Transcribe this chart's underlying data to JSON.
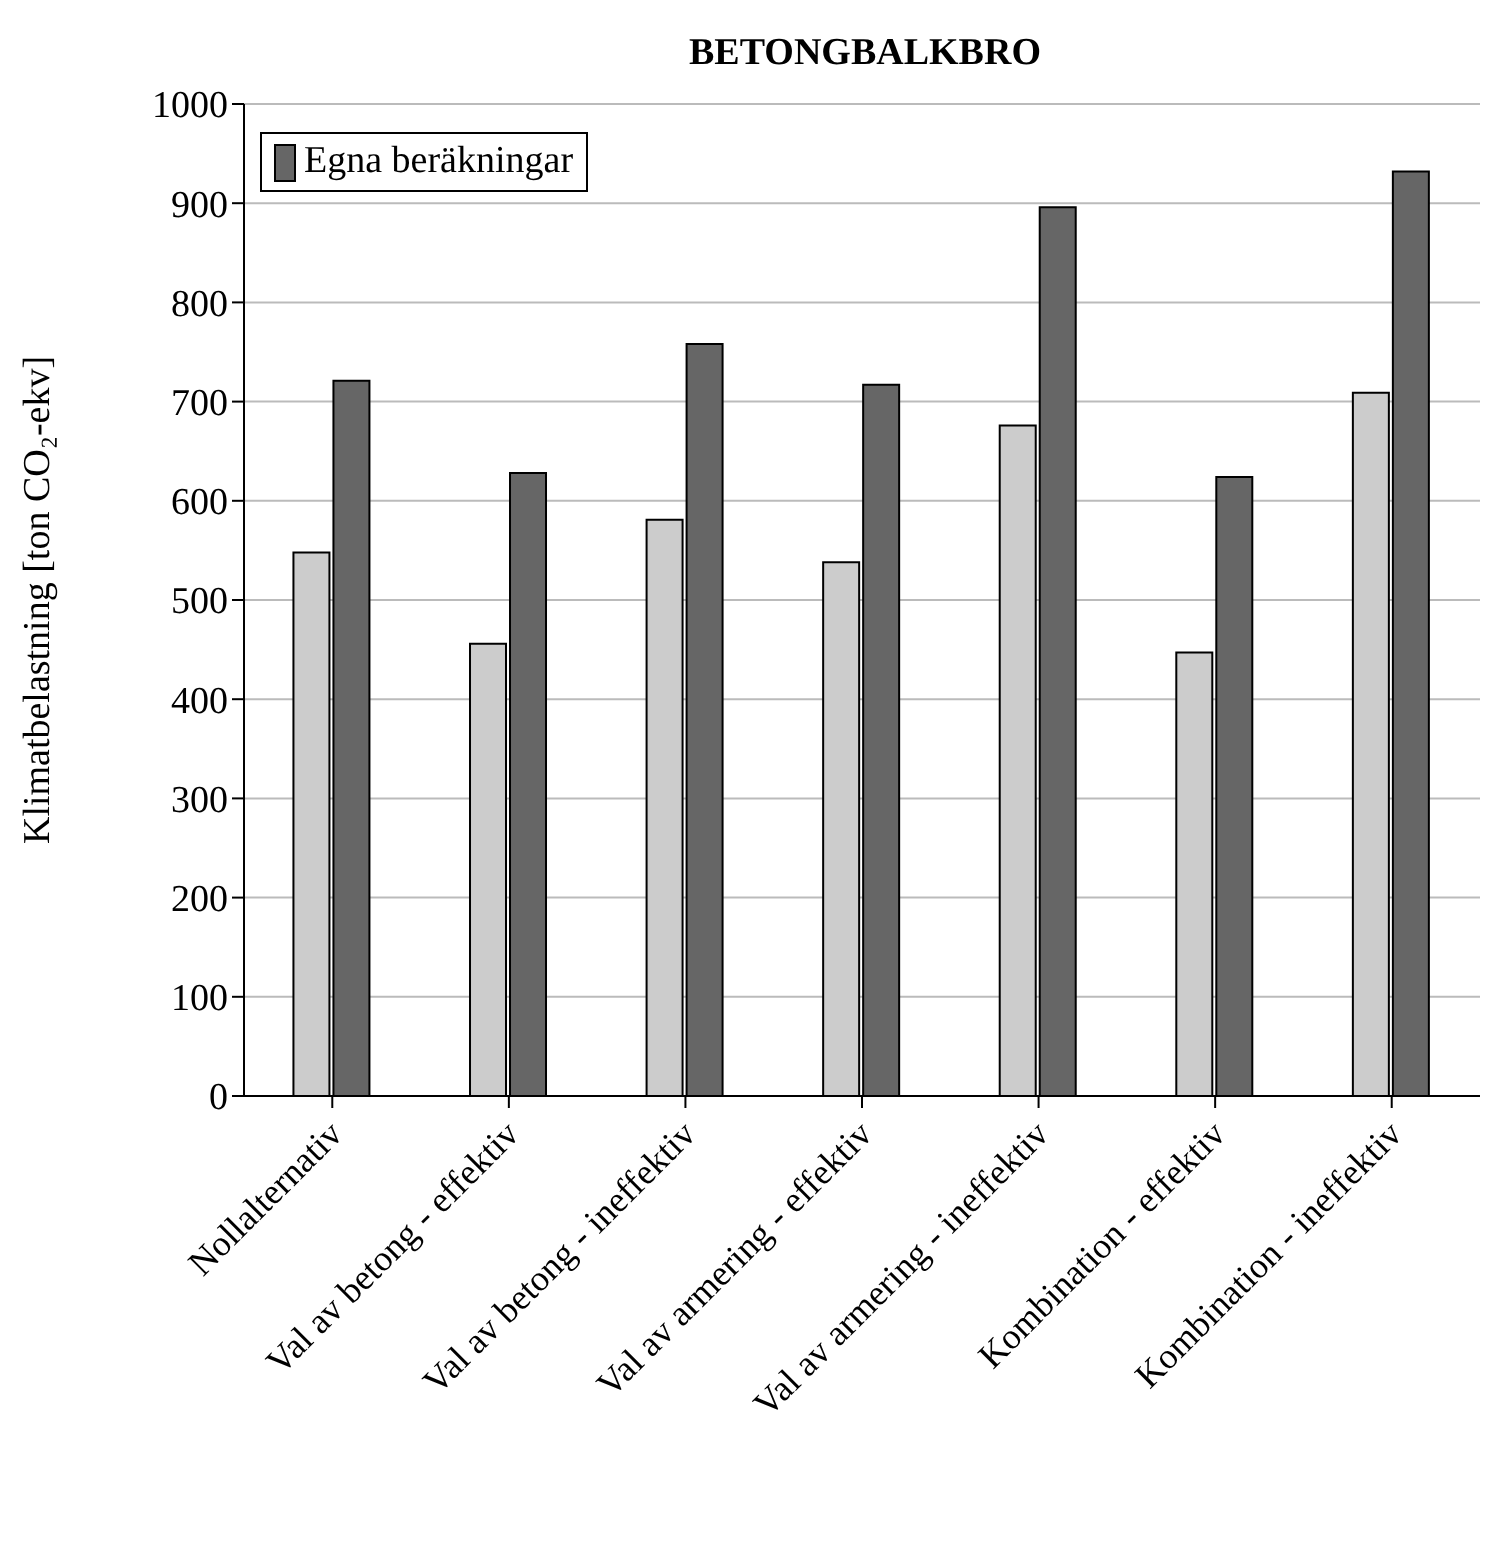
{
  "chart_data": {
    "type": "bar",
    "title": "BETONGBALKBRO",
    "ylabel": "Klimatbelastning [ton CO₂-ekv]",
    "categories": [
      "Nollalternativ",
      "Val av betong - effektiv",
      "Val av betong - ineffektiv",
      "Val av armering - effektiv",
      "Val av armering - ineffektiv",
      "Kombination - effektiv",
      "Kombination - ineffektiv"
    ],
    "series": [
      {
        "color": "#cccccc",
        "values": [
          548,
          456,
          581,
          538,
          676,
          447,
          709
        ]
      },
      {
        "name": "Egna beräkningar",
        "color": "#666666",
        "values": [
          721,
          628,
          758,
          717,
          896,
          624,
          932
        ]
      }
    ],
    "ylim": [
      0,
      1000
    ],
    "yticks": [
      0,
      100,
      200,
      300,
      400,
      500,
      600,
      700,
      800,
      900,
      1000
    ],
    "grid": "y",
    "legend": "top left"
  }
}
